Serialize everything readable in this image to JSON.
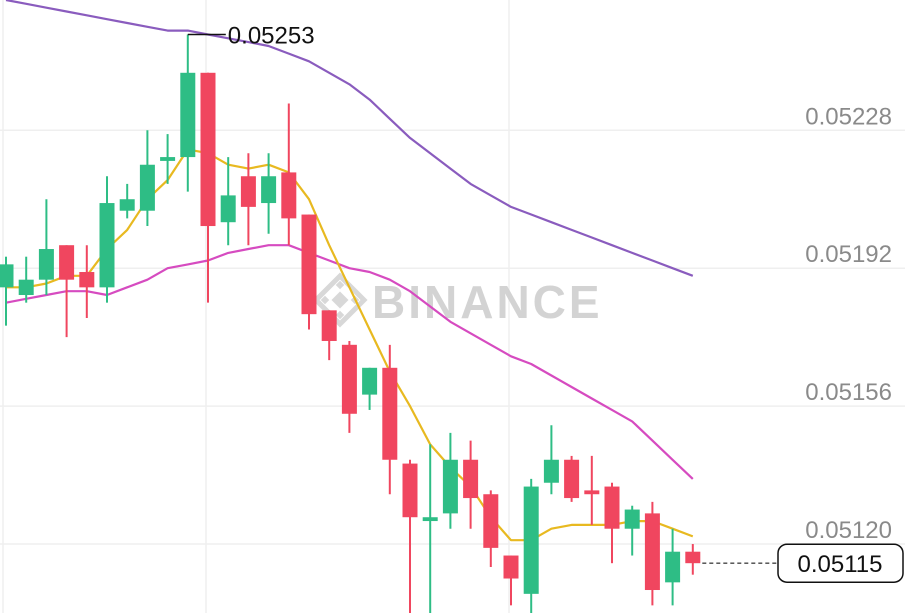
{
  "chart_data": {
    "type": "candlestick",
    "watermark": "BINANCE",
    "y_ticks": [
      "0.05228",
      "0.05192",
      "0.05156",
      "0.05120"
    ],
    "y_tick_values": [
      0.05228,
      0.05192,
      0.05156,
      0.0512
    ],
    "ylim": [
      0.05102,
      0.05262
    ],
    "high_annotation": "0.05253",
    "high_value": 0.05253,
    "last_price_label": "0.05115",
    "last_price": 0.05115,
    "colors": {
      "up": "#2ebd85",
      "down": "#f0465f",
      "ma_short": "#e8b920",
      "ma_mid": "#d64bc0",
      "ma_long": "#8a5cbe",
      "grid": "#efefef",
      "axis_text": "#8a8a8a"
    },
    "candles": [
      {
        "o": 0.05187,
        "c": 0.05193,
        "h": 0.05195,
        "l": 0.05177
      },
      {
        "o": 0.05185,
        "c": 0.05189,
        "h": 0.05195,
        "l": 0.05183
      },
      {
        "o": 0.05189,
        "c": 0.05197,
        "h": 0.0521,
        "l": 0.05185
      },
      {
        "o": 0.05198,
        "c": 0.05189,
        "h": 0.05198,
        "l": 0.05174
      },
      {
        "o": 0.05191,
        "c": 0.05187,
        "h": 0.05198,
        "l": 0.05179
      },
      {
        "o": 0.05187,
        "c": 0.05209,
        "h": 0.05216,
        "l": 0.05183
      },
      {
        "o": 0.05207,
        "c": 0.0521,
        "h": 0.05214,
        "l": 0.05205
      },
      {
        "o": 0.05207,
        "c": 0.05219,
        "h": 0.05228,
        "l": 0.05203
      },
      {
        "o": 0.0522,
        "c": 0.05221,
        "h": 0.05227,
        "l": 0.05214
      },
      {
        "o": 0.05221,
        "c": 0.05243,
        "h": 0.05253,
        "l": 0.05212
      },
      {
        "o": 0.05243,
        "c": 0.05203,
        "h": 0.05243,
        "l": 0.05183
      },
      {
        "o": 0.05204,
        "c": 0.05211,
        "h": 0.05221,
        "l": 0.05198
      },
      {
        "o": 0.05216,
        "c": 0.05208,
        "h": 0.05222,
        "l": 0.05198
      },
      {
        "o": 0.05209,
        "c": 0.05216,
        "h": 0.05222,
        "l": 0.05201
      },
      {
        "o": 0.05217,
        "c": 0.05205,
        "h": 0.05235,
        "l": 0.05198
      },
      {
        "o": 0.05206,
        "c": 0.0518,
        "h": 0.05206,
        "l": 0.05176
      },
      {
        "o": 0.05181,
        "c": 0.05173,
        "h": 0.05181,
        "l": 0.05168
      },
      {
        "o": 0.05172,
        "c": 0.05154,
        "h": 0.05173,
        "l": 0.05149
      },
      {
        "o": 0.05159,
        "c": 0.05166,
        "h": 0.05166,
        "l": 0.05155
      },
      {
        "o": 0.05166,
        "c": 0.05142,
        "h": 0.05172,
        "l": 0.05133
      },
      {
        "o": 0.05141,
        "c": 0.05127,
        "h": 0.05142,
        "l": 0.05101
      },
      {
        "o": 0.05126,
        "c": 0.05127,
        "h": 0.05146,
        "l": 0.05101
      },
      {
        "o": 0.05128,
        "c": 0.05142,
        "h": 0.05149,
        "l": 0.05124
      },
      {
        "o": 0.05142,
        "c": 0.05132,
        "h": 0.05147,
        "l": 0.05124
      },
      {
        "o": 0.05133,
        "c": 0.05119,
        "h": 0.05134,
        "l": 0.05114
      },
      {
        "o": 0.05117,
        "c": 0.05111,
        "h": 0.05117,
        "l": 0.05104
      },
      {
        "o": 0.05107,
        "c": 0.05135,
        "h": 0.05137,
        "l": 0.05102
      },
      {
        "o": 0.05136,
        "c": 0.05142,
        "h": 0.05151,
        "l": 0.05133
      },
      {
        "o": 0.05142,
        "c": 0.05132,
        "h": 0.05143,
        "l": 0.05131
      },
      {
        "o": 0.05134,
        "c": 0.05133,
        "h": 0.05143,
        "l": 0.05125
      },
      {
        "o": 0.05135,
        "c": 0.05124,
        "h": 0.05136,
        "l": 0.05115
      },
      {
        "o": 0.05124,
        "c": 0.05129,
        "h": 0.0513,
        "l": 0.05117
      },
      {
        "o": 0.05128,
        "c": 0.05108,
        "h": 0.05131,
        "l": 0.05104
      },
      {
        "o": 0.0511,
        "c": 0.05118,
        "h": 0.05124,
        "l": 0.05104
      },
      {
        "o": 0.05118,
        "c": 0.05115,
        "h": 0.0512,
        "l": 0.05112
      }
    ],
    "ma_short": [
      0.05187,
      0.05187,
      0.05188,
      0.0519,
      0.0519,
      0.05197,
      0.05202,
      0.0521,
      0.05215,
      0.05223,
      0.05222,
      0.05219,
      0.05218,
      0.05219,
      0.05217,
      0.0521,
      0.05198,
      0.05187,
      0.05176,
      0.05165,
      0.05156,
      0.05146,
      0.0514,
      0.05135,
      0.05127,
      0.05121,
      0.05121,
      0.05124,
      0.05125,
      0.05125,
      0.05125,
      0.05126,
      0.05126,
      0.05124,
      0.05122
    ],
    "ma_mid": [
      0.05183,
      0.05184,
      0.05185,
      0.05186,
      0.05186,
      0.05185,
      0.05187,
      0.05189,
      0.05192,
      0.05193,
      0.05194,
      0.05196,
      0.05197,
      0.05198,
      0.05198,
      0.05196,
      0.05194,
      0.05192,
      0.05191,
      0.05189,
      0.05186,
      0.05182,
      0.05178,
      0.05175,
      0.05172,
      0.05169,
      0.05167,
      0.05164,
      0.05161,
      0.05158,
      0.05155,
      0.05152,
      0.05147,
      0.05142,
      0.05137
    ],
    "ma_long": [
      0.05262,
      0.05261,
      0.0526,
      0.05259,
      0.05258,
      0.05257,
      0.05256,
      0.05255,
      0.05254,
      0.05254,
      0.05253,
      0.05252,
      0.05251,
      0.0525,
      0.05248,
      0.05246,
      0.05243,
      0.0524,
      0.05236,
      0.05231,
      0.05226,
      0.05222,
      0.05218,
      0.05214,
      0.05211,
      0.05208,
      0.05206,
      0.05204,
      0.05202,
      0.052,
      0.05198,
      0.05196,
      0.05194,
      0.05192,
      0.0519
    ]
  }
}
